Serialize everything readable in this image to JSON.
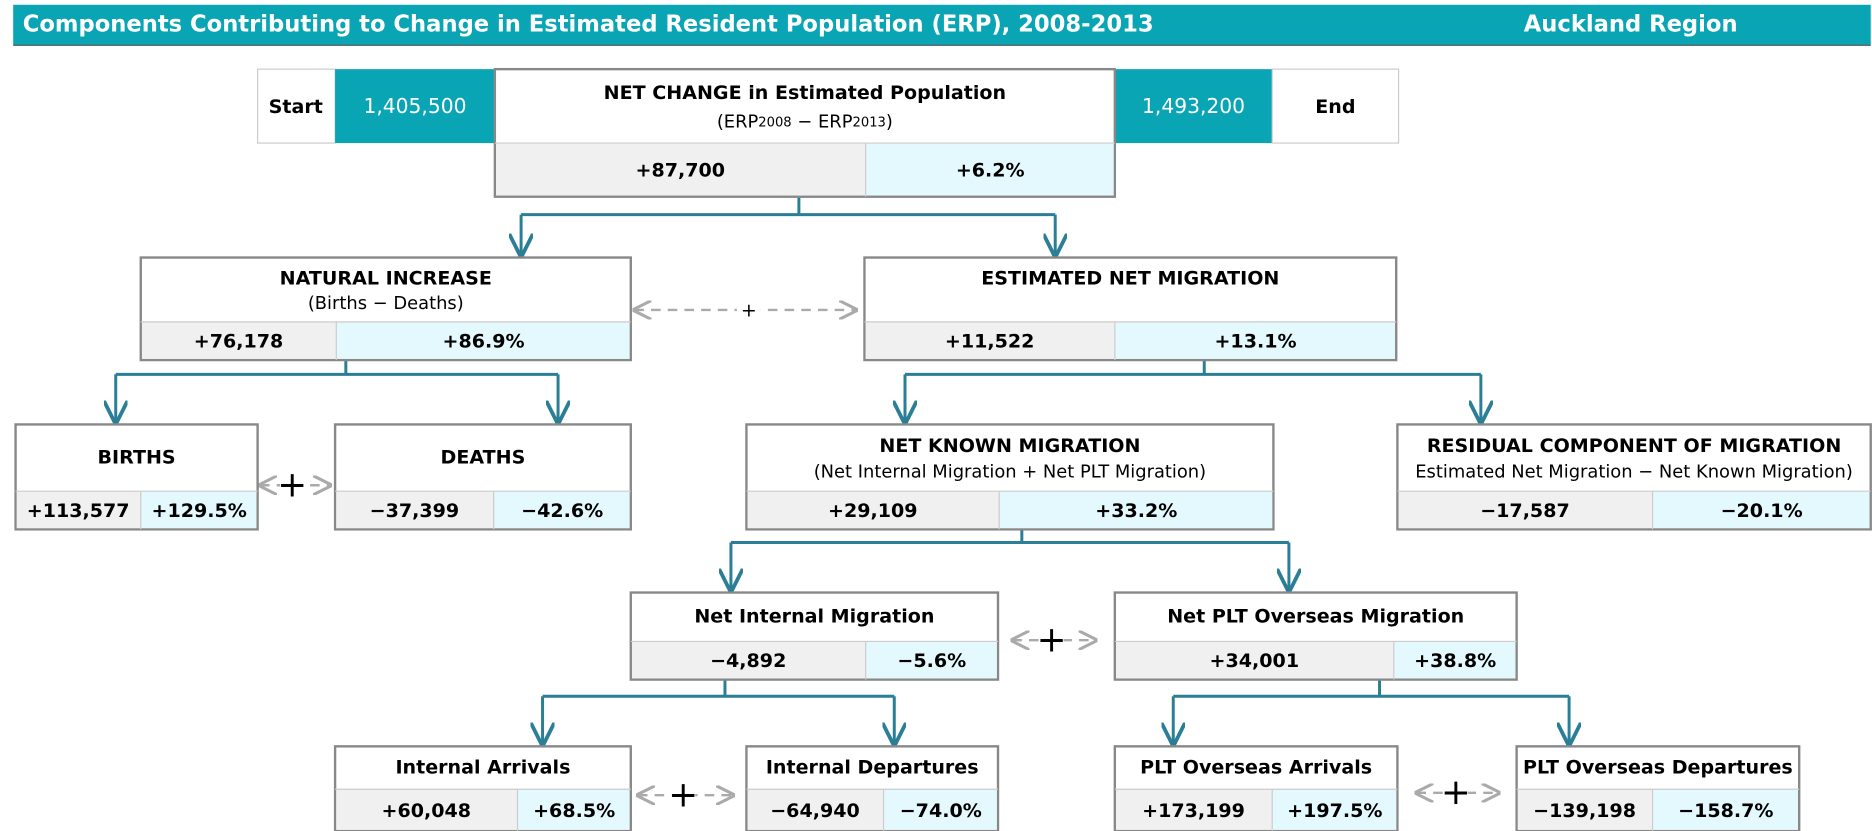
{
  "header": {
    "title": "Components Contributing to Change in Estimated Resident Population (ERP), 2008-2013",
    "region": "Auckland Region"
  },
  "start": {
    "label": "Start",
    "value": "1,405,500"
  },
  "end": {
    "label": "End",
    "value": "1,493,200"
  },
  "operator": "+",
  "nodes": [
    {
      "title": "NET CHANGE in Estimated Population",
      "subtitle": [
        "(ERP",
        "2008",
        " − ERP",
        "2013",
        ")"
      ],
      "value": "+87,700",
      "percent": "+6.2%"
    },
    {
      "title": "NATURAL INCREASE",
      "subtitle": [
        "(Births − Deaths)"
      ],
      "value": "+76,178",
      "percent": "+86.9%"
    },
    {
      "title": "ESTIMATED NET MIGRATION",
      "value": "+11,522",
      "percent": "+13.1%"
    },
    {
      "title": "BIRTHS",
      "value": "+113,577",
      "percent": "+129.5%"
    },
    {
      "title": "DEATHS",
      "value": "−37,399",
      "percent": "−42.6%"
    },
    {
      "title": "NET KNOWN MIGRATION",
      "subtitle": [
        "(Net Internal Migration + Net PLT Migration)"
      ],
      "value": "+29,109",
      "percent": "+33.2%"
    },
    {
      "title": "RESIDUAL COMPONENT OF MIGRATION",
      "subtitle": [
        "Estimated Net Migration − Net Known Migration)"
      ],
      "value": "−17,587",
      "percent": "−20.1%"
    },
    {
      "title": "Net Internal Migration",
      "value": "−4,892",
      "percent": "−5.6%"
    },
    {
      "title": "Net PLT Overseas Migration",
      "value": "+34,001",
      "percent": "+38.8%"
    },
    {
      "title": "Internal Arrivals",
      "value": "+60,048",
      "percent": "+68.5%"
    },
    {
      "title": "Internal Departures",
      "value": "−64,940",
      "percent": "−74.0%"
    },
    {
      "title": "PLT Overseas Arrivals",
      "value": "+173,199",
      "percent": "+197.5%"
    },
    {
      "title": "PLT Overseas Departures",
      "value": "−139,198",
      "percent": "−158.7%"
    }
  ]
}
